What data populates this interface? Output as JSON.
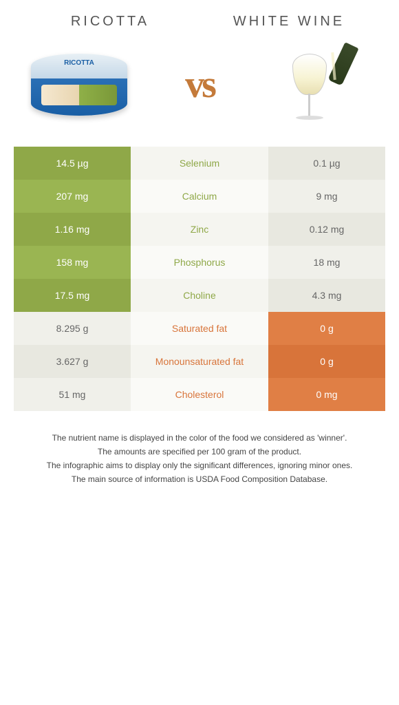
{
  "header": {
    "left_title": "RICOTTA",
    "right_title": "WHITE WINE",
    "vs_text": "vs"
  },
  "colors": {
    "left_winner": "#8fa848",
    "left_winner_alt": "#9ab552",
    "right_winner": "#d8743a",
    "right_winner_alt": "#e07f45",
    "neutral_light": "#e8e8e0",
    "neutral_lighter": "#f0f0ea",
    "mid_text_green": "#8fa848",
    "mid_text_orange": "#d8743a"
  },
  "rows": [
    {
      "nutrient": "Selenium",
      "left": "14.5 µg",
      "right": "0.1 µg",
      "winner": "left"
    },
    {
      "nutrient": "Calcium",
      "left": "207 mg",
      "right": "9 mg",
      "winner": "left"
    },
    {
      "nutrient": "Zinc",
      "left": "1.16 mg",
      "right": "0.12 mg",
      "winner": "left"
    },
    {
      "nutrient": "Phosphorus",
      "left": "158 mg",
      "right": "18 mg",
      "winner": "left"
    },
    {
      "nutrient": "Choline",
      "left": "17.5 mg",
      "right": "4.3 mg",
      "winner": "left"
    },
    {
      "nutrient": "Saturated fat",
      "left": "8.295 g",
      "right": "0 g",
      "winner": "right"
    },
    {
      "nutrient": "Monounsaturated fat",
      "left": "3.627 g",
      "right": "0 g",
      "winner": "right"
    },
    {
      "nutrient": "Cholesterol",
      "left": "51 mg",
      "right": "0 mg",
      "winner": "right"
    }
  ],
  "footer": {
    "line1": "The nutrient name is displayed in the color of the food we considered as 'winner'.",
    "line2": "The amounts are specified per 100 gram of the product.",
    "line3": "The infographic aims to display only the significant differences, ignoring minor ones.",
    "line4": "The main source of information is USDA Food Composition Database."
  }
}
